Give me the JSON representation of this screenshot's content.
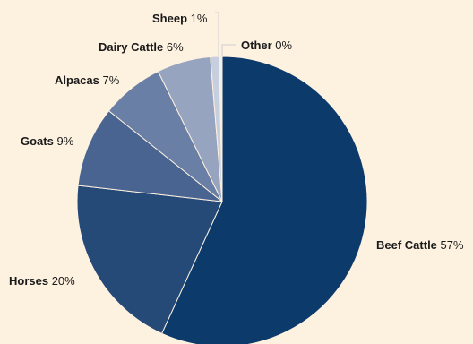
{
  "chart_data": {
    "type": "pie",
    "title": "",
    "categories": [
      "Beef Cattle",
      "Horses",
      "Goats",
      "Alpacas",
      "Dairy Cattle",
      "Sheep",
      "Other"
    ],
    "values": [
      57,
      20,
      9,
      7,
      6,
      1,
      0.3
    ],
    "value_labels": [
      "57%",
      "20%",
      "9%",
      "7%",
      "6%",
      "1%",
      "0%"
    ],
    "colors": [
      "#0b3a6b",
      "#264a78",
      "#4a6491",
      "#6a7fa5",
      "#96a4c0",
      "#c7cedd",
      "#eeeeee"
    ],
    "start_angle": "12 o'clock",
    "direction": "clockwise",
    "legend": "none",
    "background": "#fdf1e0"
  }
}
